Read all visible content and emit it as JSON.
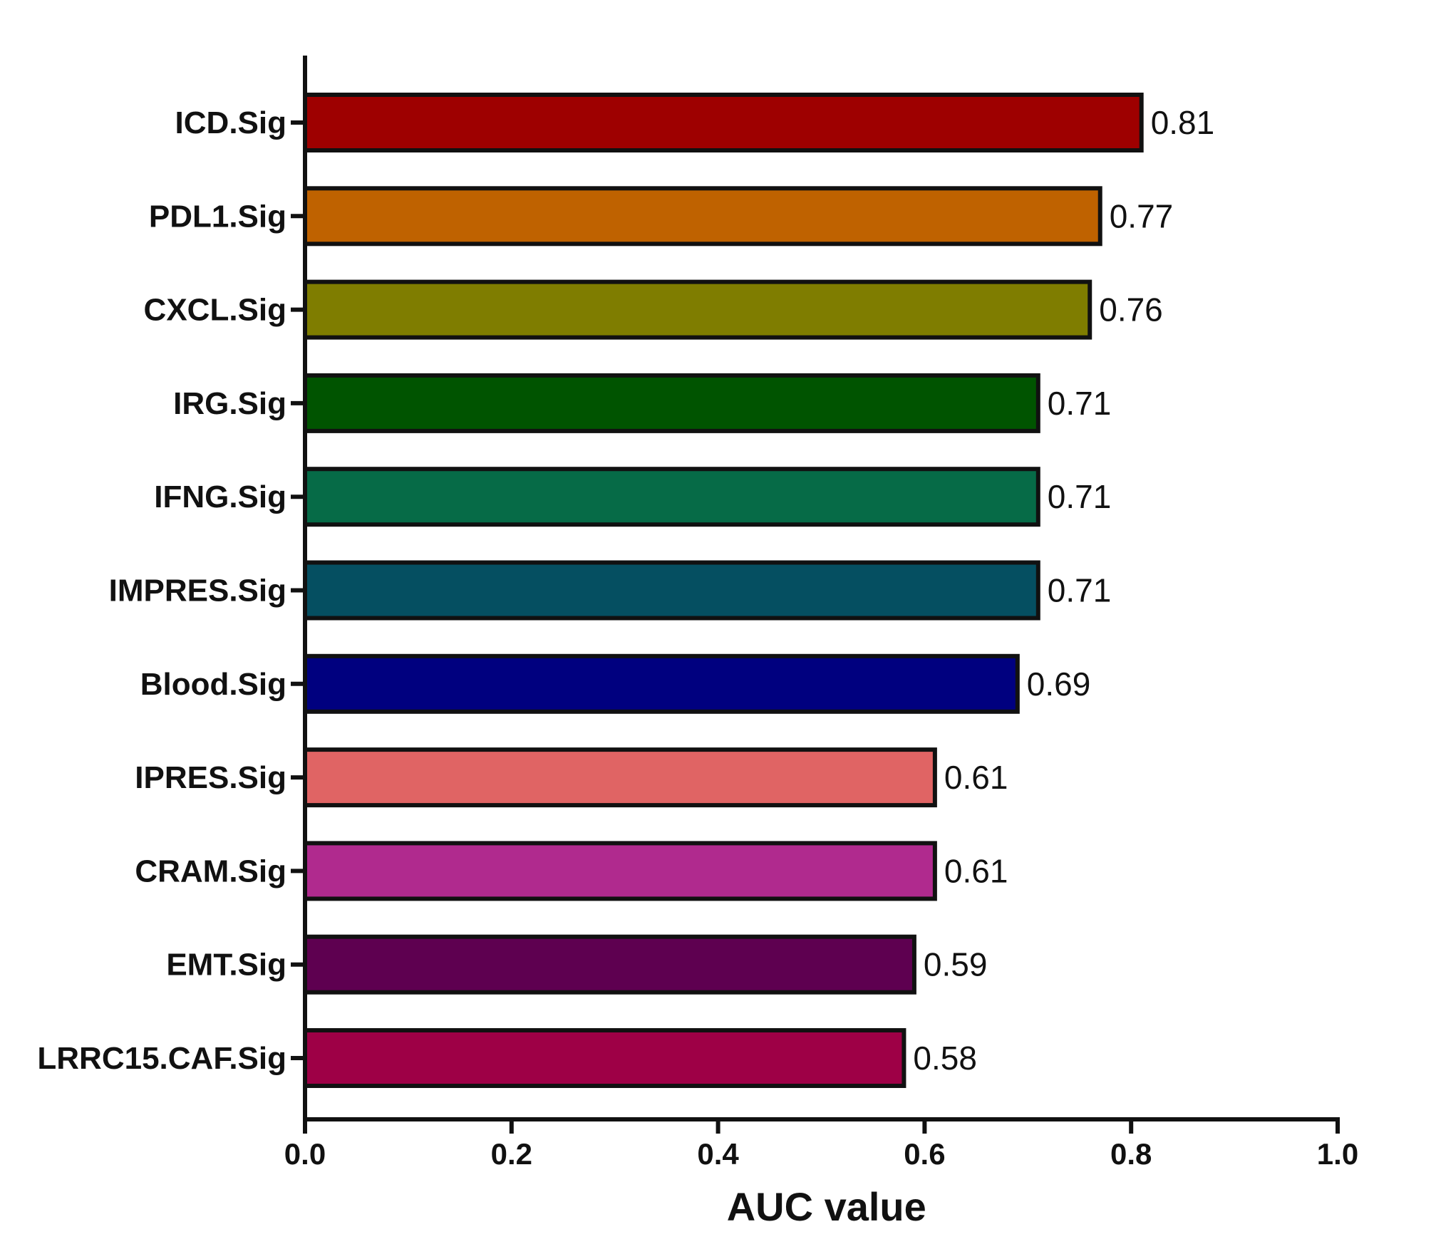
{
  "chart_data": {
    "type": "bar",
    "orientation": "horizontal",
    "categories": [
      "ICD.Sig",
      "PDL1.Sig",
      "CXCL.Sig",
      "IRG.Sig",
      "IFNG.Sig",
      "IMPRES.Sig",
      "Blood.Sig",
      "IPRES.Sig",
      "CRAM.Sig",
      "EMT.Sig",
      "LRRC15.CAF.Sig"
    ],
    "values": [
      0.81,
      0.77,
      0.76,
      0.71,
      0.71,
      0.71,
      0.69,
      0.61,
      0.61,
      0.59,
      0.58
    ],
    "value_labels": [
      "0.81",
      "0.77",
      "0.76",
      "0.71",
      "0.71",
      "0.71",
      "0.69",
      "0.61",
      "0.61",
      "0.59",
      "0.58"
    ],
    "colors": [
      "#9e0000",
      "#bf6200",
      "#7f7d00",
      "#005400",
      "#066b47",
      "#054f61",
      "#00007f",
      "#e06464",
      "#b02a8e",
      "#5e0050",
      "#9e0046"
    ],
    "title": "",
    "xlabel": "AUC value",
    "ylabel": "",
    "xlim": [
      0,
      1.0
    ],
    "xticks": [
      "0.0",
      "0.2",
      "0.4",
      "0.6",
      "0.8",
      "1.0"
    ],
    "grid": false,
    "legend": "none",
    "bar_outline_color": "#111111"
  }
}
